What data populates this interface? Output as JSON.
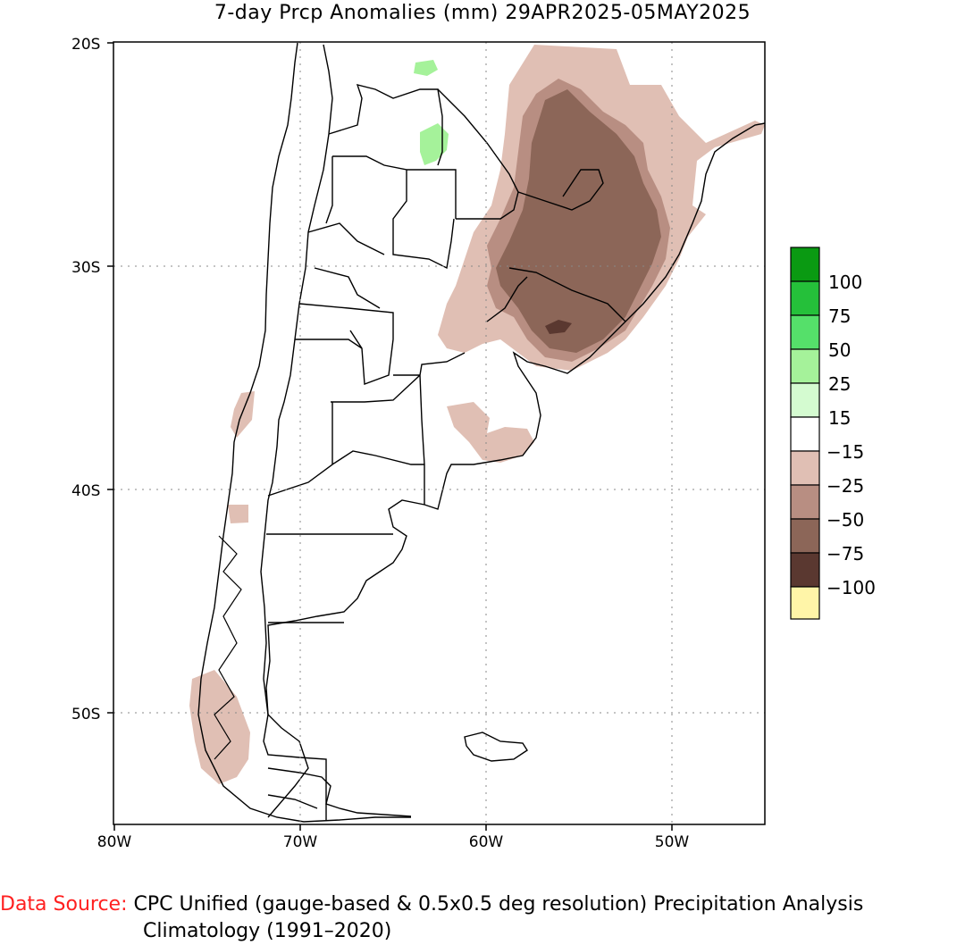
{
  "title": "7-day Prcp Anomalies (mm) 29APR2025-05MAY2025",
  "map": {
    "lat_ticks": [
      "20S",
      "30S",
      "40S",
      "50S"
    ],
    "lon_ticks": [
      "80W",
      "70W",
      "60W",
      "50W"
    ],
    "region": "Southern South America",
    "grid": "dotted"
  },
  "legend": {
    "labels": [
      "100",
      "75",
      "50",
      "25",
      "15",
      "−15",
      "−25",
      "−50",
      "−75",
      "−100"
    ],
    "colors": [
      "#0a9a12",
      "#25c03a",
      "#55e06a",
      "#a5f29a",
      "#d4fbd0",
      "#ffffff",
      "#e0bfb4",
      "#b88e82",
      "#8c6658",
      "#5a3830",
      "#fff5a8"
    ]
  },
  "footer": {
    "source_label": "Data Source:",
    "source_text": "CPC Unified (gauge-based & 0.5x0.5 deg resolution) Precipitation Analysis",
    "climatology": "Climatology (1991–2020)"
  }
}
